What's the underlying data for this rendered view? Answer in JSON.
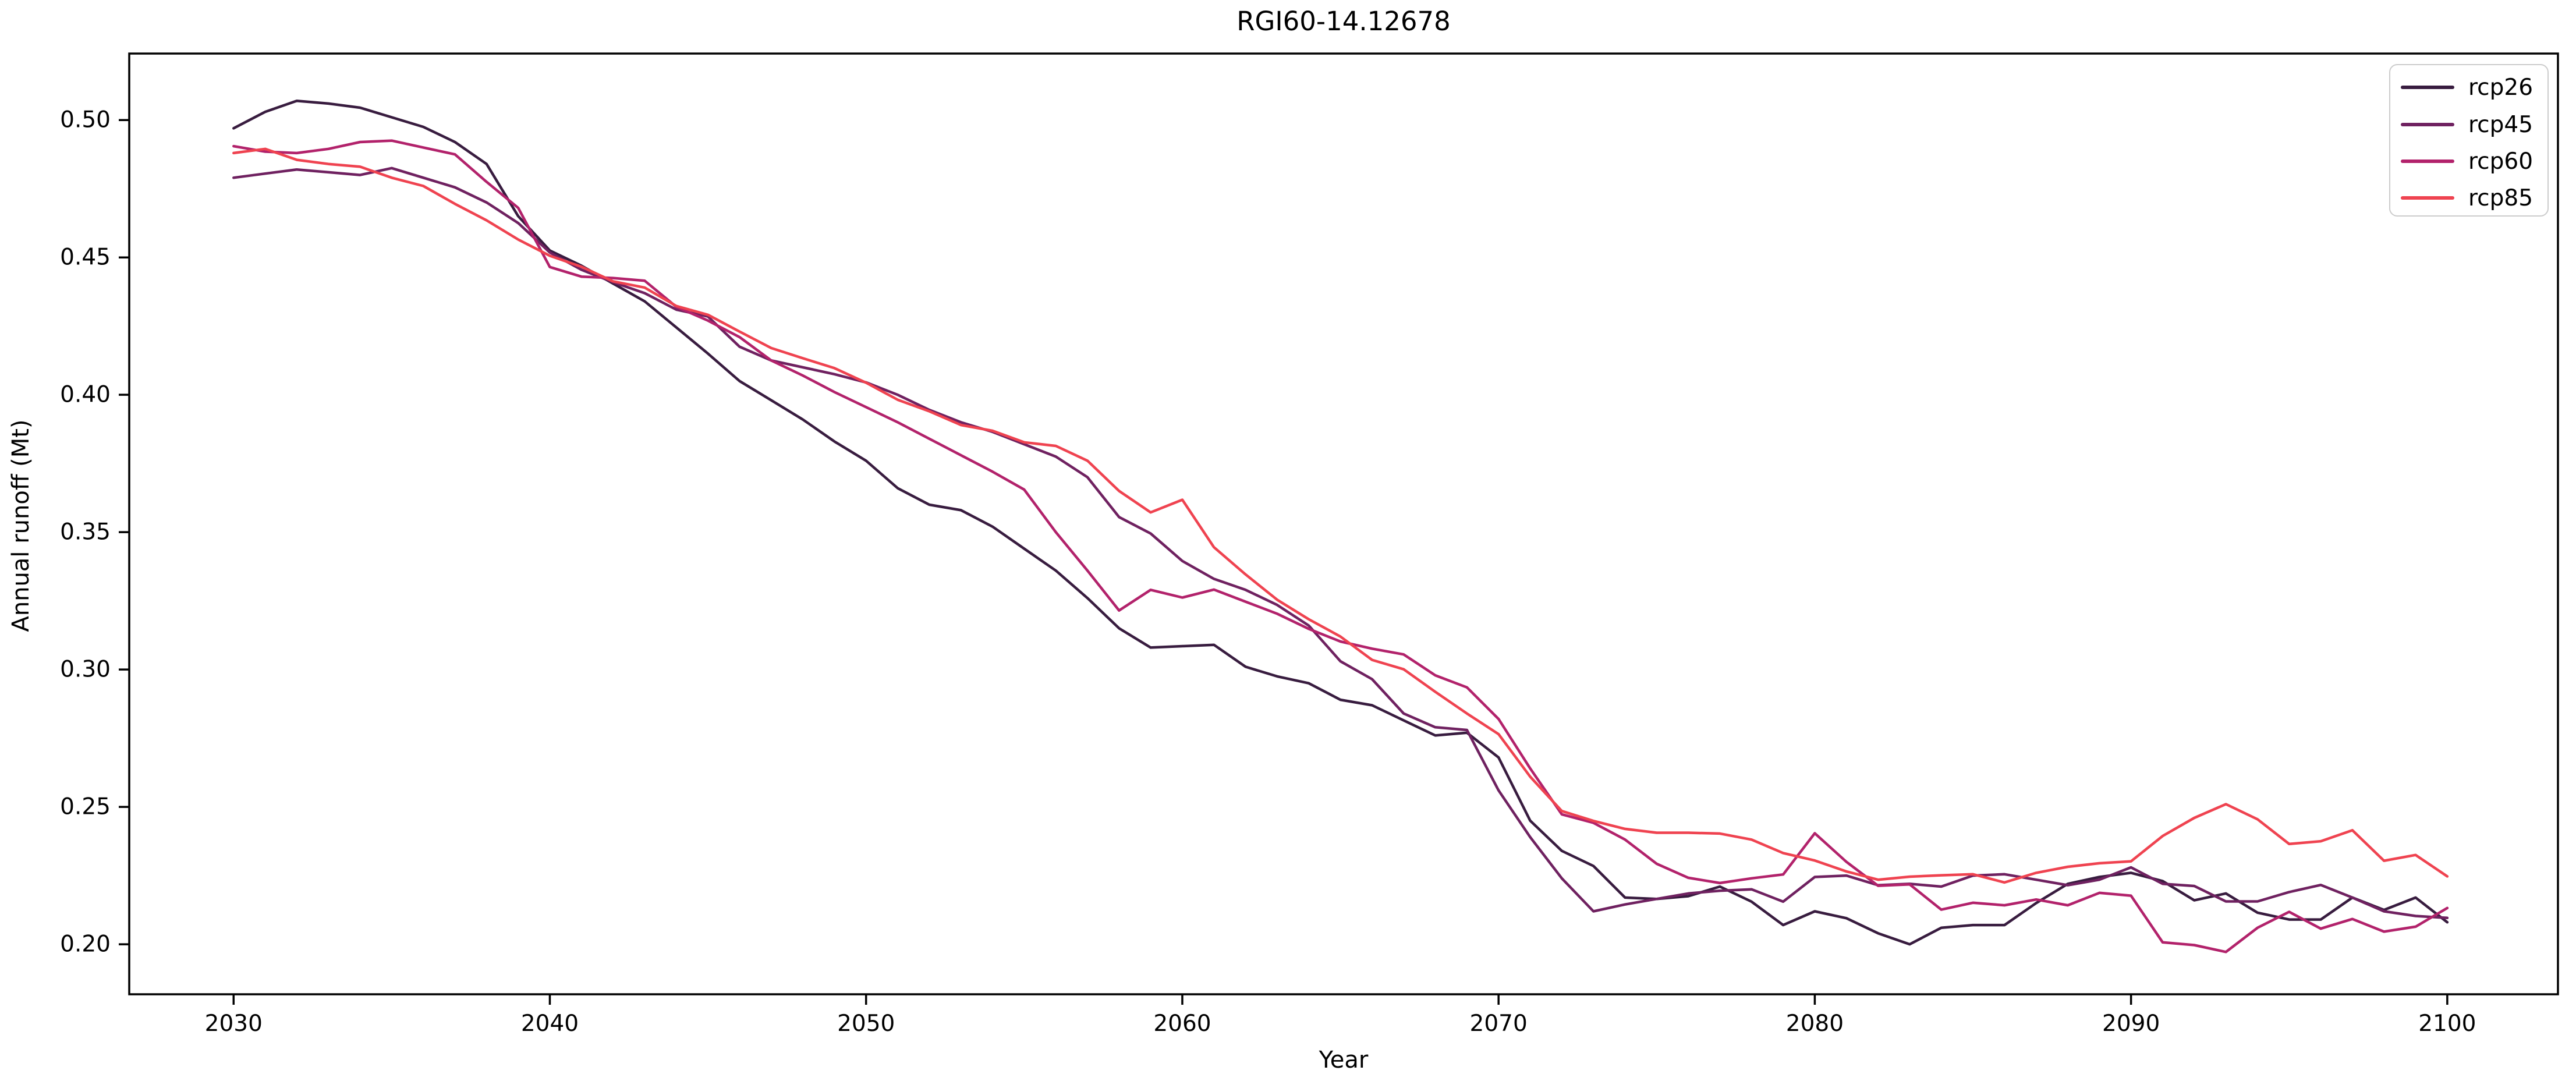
{
  "chart_data": {
    "type": "line",
    "title": "RGI60-14.12678",
    "xlabel": "Year",
    "ylabel": "Annual runoff (Mt)",
    "grid": false,
    "legend_position": "upper right",
    "x_ticks": [
      2030,
      2040,
      2050,
      2060,
      2070,
      2080,
      2090,
      2100
    ],
    "y_ticks": [
      "0.50",
      "0.45",
      "0.40",
      "0.35",
      "0.30",
      "0.25",
      "0.20"
    ],
    "xlim": [
      2026.7,
      2103.5
    ],
    "ylim": [
      0.1818,
      0.5242
    ],
    "x_start": 2030,
    "x_step": 1,
    "series": [
      {
        "name": "rcp26",
        "color": "#381c3f",
        "values": [
          0.497,
          0.503,
          0.507,
          0.506,
          0.5045,
          0.501,
          0.4975,
          0.492,
          0.484,
          0.465,
          0.4525,
          0.447,
          0.4405,
          0.434,
          0.4245,
          0.415,
          0.405,
          0.398,
          0.391,
          0.383,
          0.376,
          0.366,
          0.36,
          0.358,
          0.352,
          0.344,
          0.336,
          0.326,
          0.315,
          0.308,
          0.3085,
          0.309,
          0.301,
          0.2975,
          0.295,
          0.289,
          0.287,
          0.2815,
          0.276,
          0.277,
          0.268,
          0.245,
          0.234,
          0.2285,
          0.217,
          0.2165,
          0.2175,
          0.221,
          0.2155,
          0.207,
          0.212,
          0.2095,
          0.204,
          0.2,
          0.206,
          0.207,
          0.207,
          0.215,
          0.222,
          0.2245,
          0.226,
          0.223,
          0.216,
          0.2185,
          0.2115,
          0.209,
          0.209,
          0.217,
          0.2125,
          0.217,
          0.208
        ]
      },
      {
        "name": "rcp45",
        "color": "#6f2160",
        "values": [
          0.479,
          0.4805,
          0.482,
          0.481,
          0.48,
          0.4825,
          0.479,
          0.4755,
          0.47,
          0.4625,
          0.4518,
          0.4455,
          0.441,
          0.437,
          0.431,
          0.4285,
          0.4175,
          0.4125,
          0.41,
          0.4075,
          0.4045,
          0.4,
          0.3945,
          0.39,
          0.3865,
          0.382,
          0.3775,
          0.37,
          0.3555,
          0.3495,
          0.3395,
          0.333,
          0.329,
          0.3235,
          0.316,
          0.303,
          0.2965,
          0.284,
          0.279,
          0.278,
          0.256,
          0.239,
          0.224,
          0.212,
          0.2145,
          0.2165,
          0.2185,
          0.2195,
          0.22,
          0.2155,
          0.2245,
          0.225,
          0.2215,
          0.222,
          0.221,
          0.225,
          0.2255,
          0.2235,
          0.2215,
          0.2235,
          0.228,
          0.222,
          0.2212,
          0.2156,
          0.2156,
          0.219,
          0.2216,
          0.217,
          0.212,
          0.2103,
          0.2096
        ]
      },
      {
        "name": "rcp60",
        "color": "#b2226b",
        "values": [
          0.4905,
          0.4885,
          0.488,
          0.4895,
          0.492,
          0.4925,
          0.49,
          0.4875,
          0.4775,
          0.468,
          0.4465,
          0.443,
          0.4425,
          0.4415,
          0.432,
          0.427,
          0.421,
          0.4125,
          0.407,
          0.401,
          0.3955,
          0.39,
          0.384,
          0.378,
          0.372,
          0.3655,
          0.35,
          0.336,
          0.3215,
          0.329,
          0.3262,
          0.3291,
          0.3247,
          0.3203,
          0.3148,
          0.3102,
          0.3076,
          0.3055,
          0.2979,
          0.2935,
          0.282,
          0.264,
          0.2473,
          0.2442,
          0.2381,
          0.2293,
          0.2242,
          0.2223,
          0.224,
          0.2254,
          0.2404,
          0.23,
          0.2213,
          0.2218,
          0.2126,
          0.2151,
          0.2142,
          0.2163,
          0.2142,
          0.2187,
          0.2177,
          0.2007,
          0.1997,
          0.1972,
          0.206,
          0.2118,
          0.2057,
          0.2092,
          0.2046,
          0.2064,
          0.2132
        ]
      },
      {
        "name": "rcp85",
        "color": "#ef4350",
        "values": [
          0.488,
          0.4895,
          0.4855,
          0.484,
          0.483,
          0.479,
          0.476,
          0.4695,
          0.4635,
          0.4565,
          0.4506,
          0.4466,
          0.4413,
          0.439,
          0.4323,
          0.4291,
          0.423,
          0.417,
          0.4133,
          0.4097,
          0.4044,
          0.3982,
          0.394,
          0.389,
          0.3869,
          0.3827,
          0.3814,
          0.376,
          0.365,
          0.3572,
          0.3618,
          0.3445,
          0.3346,
          0.3254,
          0.3183,
          0.312,
          0.3035,
          0.3001,
          0.2919,
          0.284,
          0.2765,
          0.261,
          0.2485,
          0.2449,
          0.242,
          0.2406,
          0.2406,
          0.2403,
          0.2381,
          0.2332,
          0.2305,
          0.2265,
          0.2235,
          0.2246,
          0.2251,
          0.2255,
          0.2225,
          0.226,
          0.2282,
          0.2295,
          0.2302,
          0.2394,
          0.246,
          0.251,
          0.2455,
          0.2365,
          0.2375,
          0.2415,
          0.2304,
          0.2325,
          0.2247
        ]
      }
    ]
  }
}
